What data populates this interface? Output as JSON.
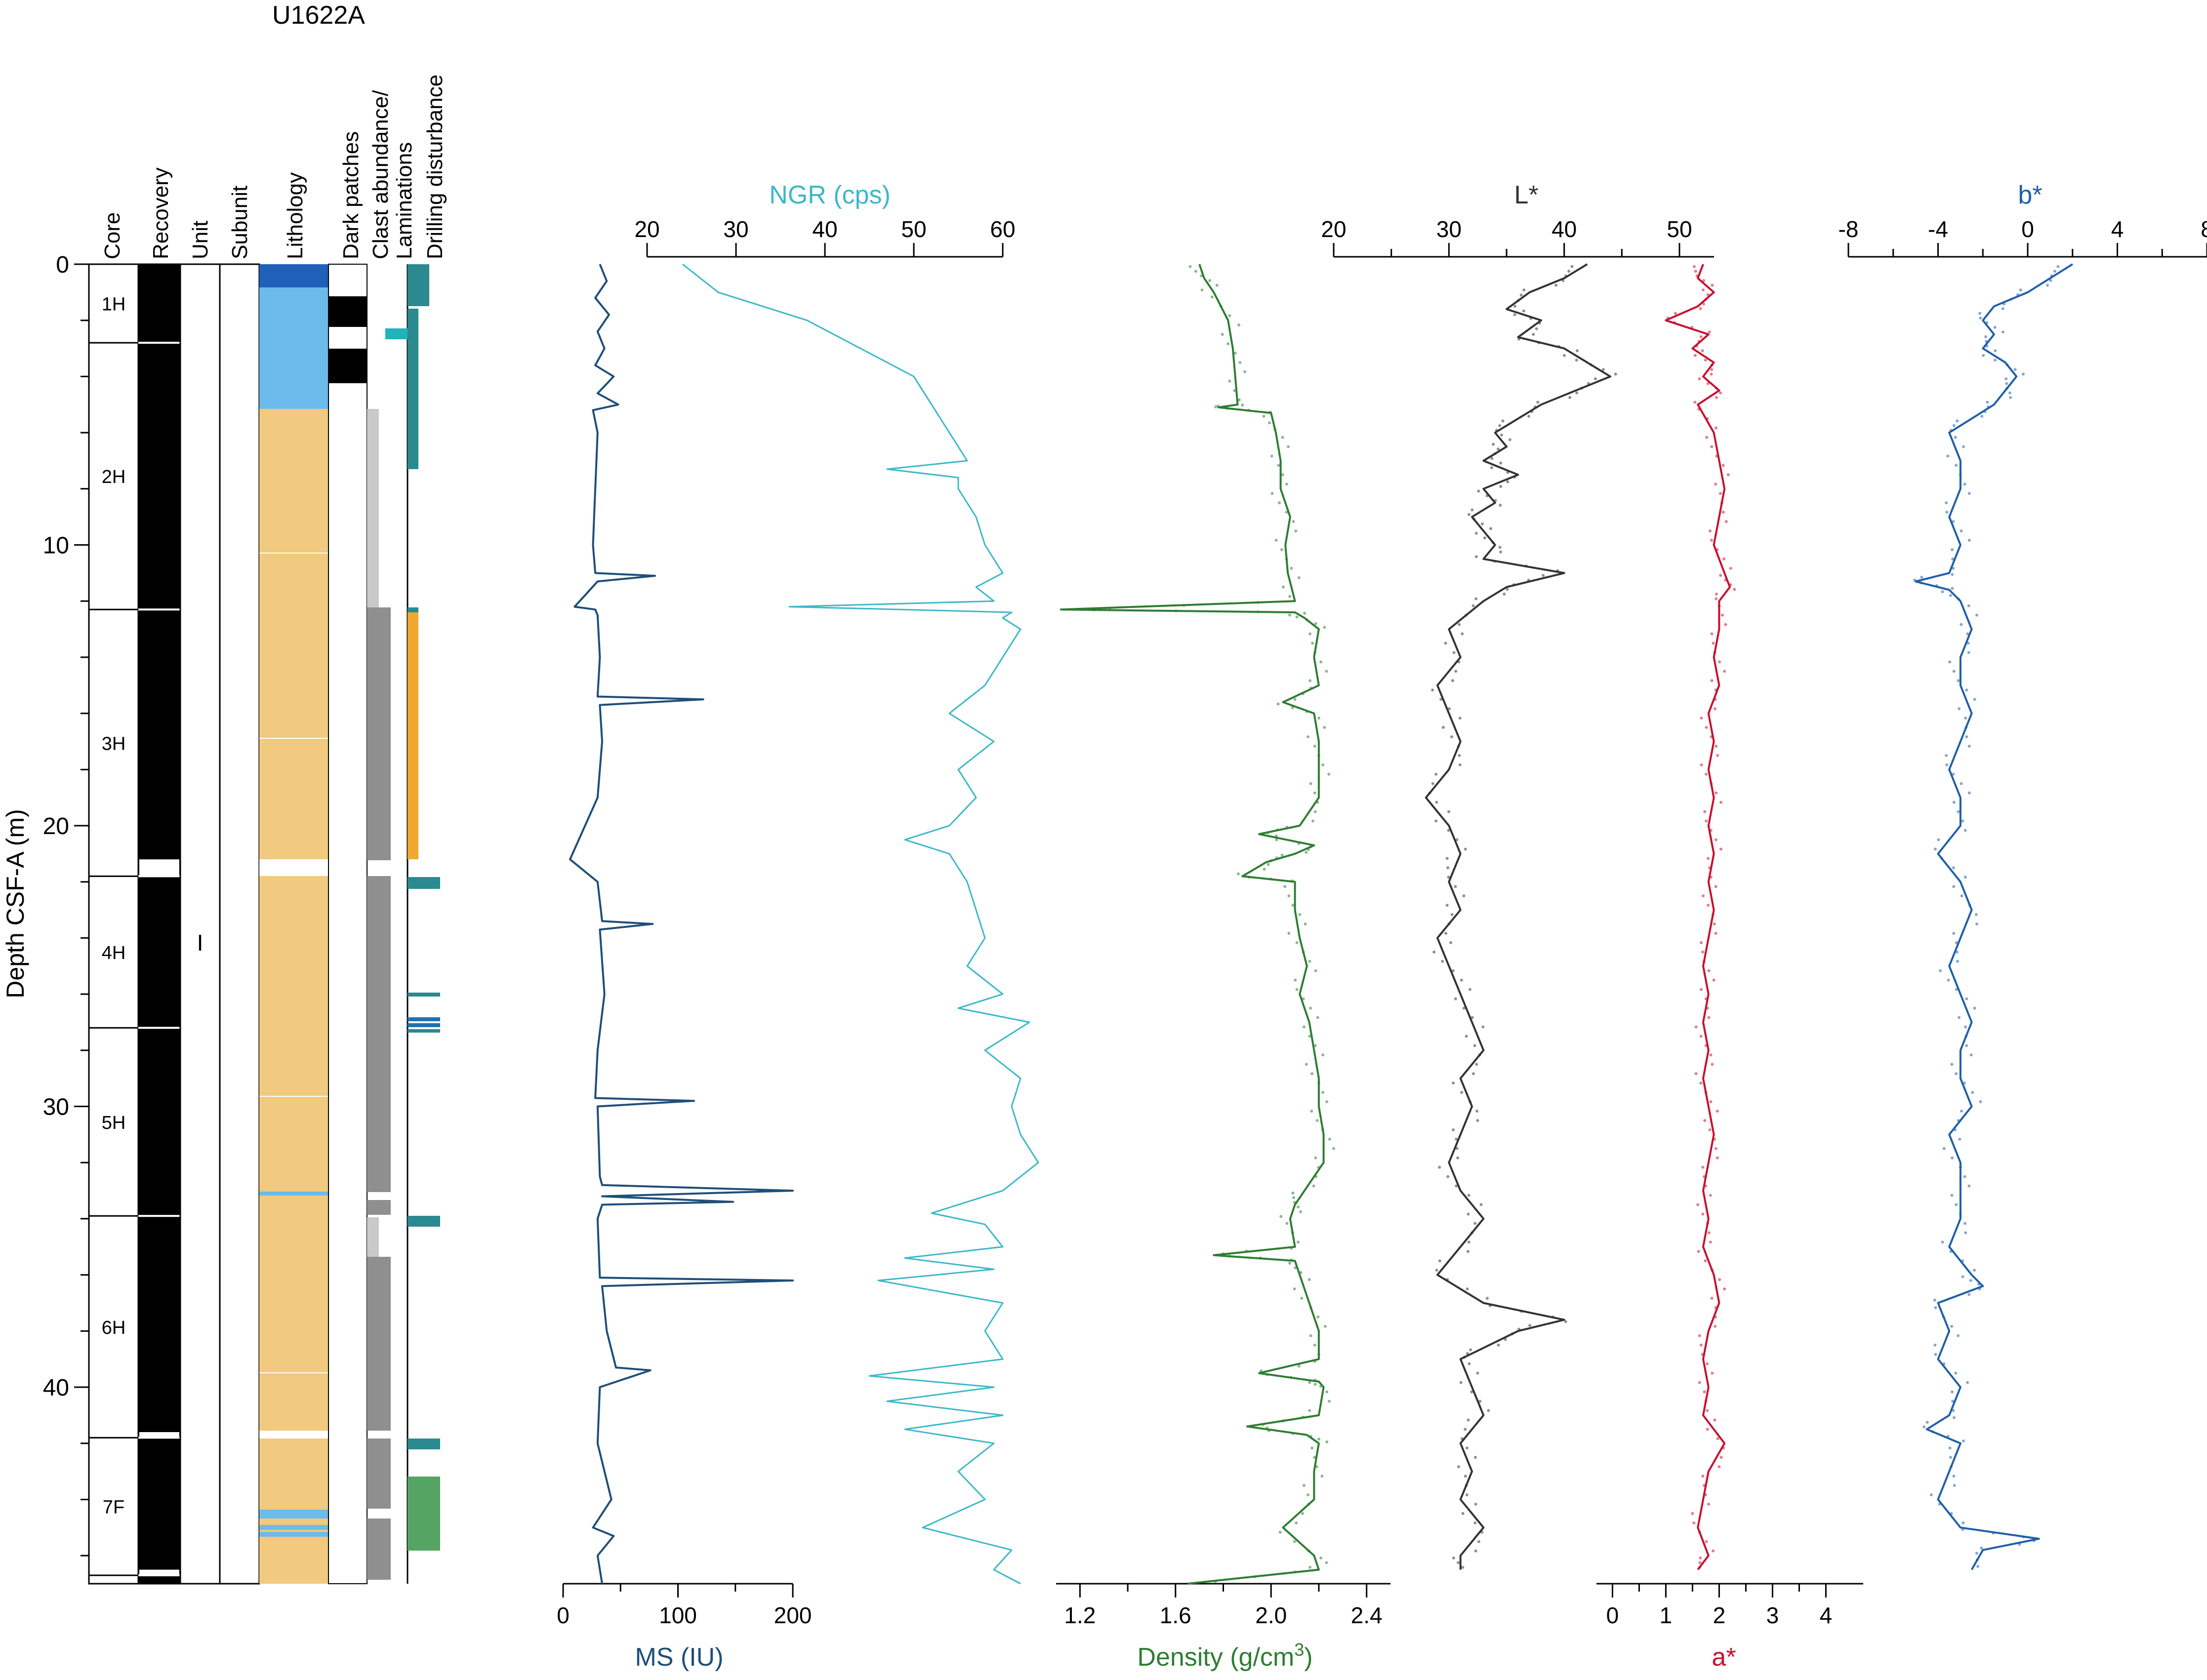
{
  "title": "U1622A",
  "depth_axis": {
    "label": "Depth CSF-A (m)",
    "ticks": [
      0,
      10,
      20,
      30,
      40
    ],
    "ylim": [
      0,
      47
    ]
  },
  "column_headers": {
    "core": "Core",
    "recovery": "Recovery",
    "unit": "Unit",
    "subunit": "Subunit",
    "lithology": "Lithology",
    "dark_patches": "Dark patches",
    "clast_laminations": [
      "Clast abundance/",
      "Laminations"
    ],
    "drilling_disturbance": "Drilling disturbance"
  },
  "unit_label": "I",
  "colors": {
    "ms": "#1f4e79",
    "ngr": "#3bb8c8",
    "density": "#2e7d32",
    "lstar": "#333333",
    "astar": "#c8102e",
    "bstar": "#1f5fa8",
    "mud": "#f1c97f",
    "blue_mud": "#6cbbea",
    "dark_blue": "#2060b8"
  },
  "chart_data": [
    {
      "type": "line",
      "name": "ms",
      "xlabel": "MS (IU)",
      "xlim": [
        0,
        200
      ],
      "xticks": [
        "0",
        "100",
        "200"
      ],
      "axis_position": "bottom",
      "depth": [
        0,
        0.6,
        1.2,
        1.8,
        2.4,
        3.0,
        3.6,
        4.0,
        4.6,
        5.0,
        5.2,
        6,
        8,
        10,
        11,
        11.1,
        11.3,
        12.2,
        12.3,
        12.5,
        14,
        15.4,
        15.5,
        15.7,
        17,
        19,
        21.2,
        22,
        23.4,
        23.5,
        23.7,
        26,
        28,
        29.7,
        29.8,
        30,
        32.5,
        32.8,
        33.0,
        33.2,
        33.4,
        33.5,
        34,
        36.1,
        36.2,
        36.4,
        38,
        39.3,
        39.4,
        40,
        42,
        44,
        45.0,
        45.3,
        46,
        47
      ],
      "values": [
        32,
        38,
        28,
        40,
        30,
        36,
        28,
        44,
        30,
        48,
        26,
        30,
        28,
        26,
        28,
        80,
        30,
        10,
        28,
        30,
        32,
        30,
        122,
        32,
        34,
        30,
        6,
        30,
        34,
        78,
        32,
        36,
        30,
        28,
        114,
        30,
        32,
        34,
        200,
        34,
        148,
        34,
        30,
        32,
        200,
        34,
        38,
        46,
        76,
        32,
        30,
        42,
        26,
        44,
        30,
        34
      ]
    },
    {
      "type": "line",
      "name": "ngr",
      "xlabel": "NGR (cps)",
      "xlim": [
        20,
        60
      ],
      "xticks": [
        "20",
        "30",
        "40",
        "50",
        "60"
      ],
      "axis_position": "top",
      "depth": [
        0,
        1,
        2,
        3,
        4,
        5,
        6,
        7,
        7.3,
        7.6,
        8,
        9,
        10,
        11,
        11.5,
        12,
        12.2,
        12.4,
        12.6,
        13,
        14,
        15,
        16,
        17,
        18,
        19,
        20,
        20.5,
        21,
        22,
        23,
        24,
        25,
        26,
        26.5,
        27,
        28,
        29,
        30,
        31,
        32,
        33,
        33.8,
        34.2,
        35,
        35.4,
        35.8,
        36.2,
        37,
        38,
        39,
        39.6,
        40,
        40.5,
        41,
        41.5,
        42,
        43,
        44,
        45,
        45.8,
        46.5,
        47
      ],
      "values": [
        24,
        28,
        38,
        44,
        50,
        52,
        54,
        56,
        47,
        55,
        55,
        57,
        58,
        60,
        57,
        59,
        36,
        61,
        60,
        62,
        60,
        58,
        54,
        59,
        55,
        57,
        54,
        49,
        54,
        56,
        57,
        58,
        56,
        60,
        55,
        63,
        58,
        62,
        61,
        62,
        64,
        60,
        52,
        58,
        60,
        49,
        59,
        46,
        60,
        58,
        60,
        45,
        59,
        47,
        60,
        49,
        59,
        55,
        58,
        51,
        61,
        59,
        62
      ]
    },
    {
      "type": "line",
      "name": "density",
      "xlabel": "Density (g/cm3)",
      "xlabel_main": "Density (g/cm",
      "xlabel_sup": "3",
      "xlabel_close": ")",
      "xlim": [
        1.1,
        2.5
      ],
      "xticks": [
        "1.2",
        "1.6",
        "2.0",
        "2.4"
      ],
      "axis_position": "bottom",
      "depth": [
        0,
        0.5,
        1,
        2,
        3,
        4,
        5,
        5.1,
        5.3,
        6,
        7,
        8,
        9,
        10,
        11,
        12,
        12.3,
        12.4,
        12.6,
        13,
        14,
        15,
        15.6,
        16,
        17,
        18,
        19,
        20,
        20.3,
        20.7,
        21,
        21.3,
        21.8,
        22,
        23,
        24,
        25,
        26,
        27,
        28,
        29,
        30,
        31,
        32,
        33,
        33.5,
        34,
        35,
        35.3,
        35.5,
        36,
        37,
        38,
        39,
        39.5,
        39.8,
        40,
        41,
        41.4,
        41.7,
        42,
        43,
        44,
        45,
        46,
        46.5,
        47
      ],
      "values": [
        1.7,
        1.72,
        1.76,
        1.82,
        1.84,
        1.85,
        1.86,
        1.78,
        2.0,
        2.02,
        2.04,
        2.04,
        2.08,
        2.06,
        2.07,
        2.1,
        1.12,
        2.1,
        2.14,
        2.2,
        2.18,
        2.2,
        2.05,
        2.18,
        2.2,
        2.2,
        2.2,
        2.12,
        1.95,
        2.18,
        2.1,
        1.98,
        1.88,
        2.1,
        2.1,
        2.12,
        2.15,
        2.12,
        2.16,
        2.18,
        2.2,
        2.2,
        2.22,
        2.22,
        2.14,
        2.1,
        2.08,
        2.1,
        1.76,
        2.1,
        2.12,
        2.16,
        2.2,
        2.2,
        1.95,
        2.2,
        2.22,
        2.2,
        1.9,
        2.15,
        2.2,
        2.18,
        2.18,
        2.05,
        2.18,
        2.2,
        1.65
      ]
    },
    {
      "type": "line",
      "name": "lstar",
      "xlabel": "L*",
      "xlim": [
        20,
        53
      ],
      "xticks": [
        "20",
        "30",
        "40",
        "50"
      ],
      "axis_position": "top",
      "depth": [
        0,
        0.5,
        1,
        1.6,
        2,
        2.6,
        3,
        3.5,
        4,
        4.5,
        5,
        5.5,
        6,
        6.5,
        7,
        7.5,
        8,
        8.5,
        9,
        9.5,
        10,
        10.5,
        11,
        11.5,
        12,
        13,
        14,
        15,
        16,
        17,
        18,
        19,
        20,
        21,
        22,
        23,
        24,
        25,
        26,
        27,
        28,
        29,
        30,
        31,
        32,
        33,
        34,
        35,
        36,
        37,
        37.6,
        38,
        38.6,
        39,
        40,
        41,
        42,
        43,
        44,
        45,
        46,
        46.5
      ],
      "values": [
        42,
        40,
        37,
        35,
        38,
        36,
        40,
        42,
        44,
        41,
        38,
        36,
        34,
        35,
        33,
        36,
        33,
        34,
        32,
        33,
        34,
        33,
        40,
        35,
        33,
        30,
        31,
        29,
        30,
        31,
        30,
        28,
        30,
        31,
        30,
        31,
        29,
        30,
        31,
        32,
        33,
        31,
        32,
        31,
        30,
        31,
        33,
        31,
        29,
        33,
        40,
        36,
        33,
        31,
        32,
        33,
        31,
        32,
        31,
        33,
        31,
        31
      ]
    },
    {
      "type": "line",
      "name": "astar",
      "xlabel": "a*",
      "xlim": [
        -0.3,
        4.7
      ],
      "xticks": [
        "0",
        "1",
        "2",
        "3",
        "4"
      ],
      "axis_position": "bottom",
      "depth": [
        0,
        0.5,
        1,
        1.5,
        2,
        2.5,
        3,
        3.5,
        4,
        4.5,
        5,
        6,
        7,
        8,
        9,
        10,
        11,
        11.5,
        12,
        13,
        14,
        15,
        16,
        17,
        18,
        19,
        20,
        21,
        22,
        23,
        24,
        25,
        26,
        27,
        28,
        29,
        30,
        31,
        32,
        33,
        34,
        35,
        36,
        37,
        38,
        39,
        40,
        41,
        42,
        43,
        44,
        45,
        46,
        46.5
      ],
      "values": [
        1.7,
        1.6,
        1.9,
        1.6,
        1.0,
        1.8,
        1.5,
        1.9,
        1.7,
        2.0,
        1.6,
        1.9,
        2.0,
        2.1,
        2.0,
        1.9,
        2.1,
        2.2,
        2.0,
        2.0,
        1.9,
        2.0,
        1.8,
        1.9,
        1.8,
        1.9,
        1.8,
        1.9,
        1.8,
        1.9,
        1.8,
        1.7,
        1.8,
        1.7,
        1.8,
        1.7,
        1.8,
        1.9,
        1.8,
        1.7,
        1.8,
        1.7,
        1.9,
        2.0,
        1.8,
        1.7,
        1.8,
        1.7,
        2.1,
        1.8,
        1.7,
        1.6,
        1.8,
        1.6
      ]
    },
    {
      "type": "line",
      "name": "bstar",
      "xlabel": "b*",
      "xlim": [
        -8,
        8
      ],
      "xticks": [
        "-8",
        "-4",
        "0",
        "4",
        "8"
      ],
      "axis_position": "top",
      "depth": [
        0,
        0.5,
        1,
        1.5,
        2,
        2.5,
        3,
        3.5,
        4,
        4.5,
        5,
        5.5,
        6,
        7,
        8,
        9,
        10,
        11,
        11.3,
        11.6,
        12,
        13,
        14,
        15,
        16,
        17,
        18,
        19,
        20,
        21,
        22,
        23,
        24,
        25,
        26,
        27,
        28,
        29,
        30,
        31,
        32,
        33,
        34,
        35,
        36,
        36.4,
        37,
        38,
        39,
        40,
        41,
        41.5,
        42,
        43,
        44,
        45,
        45.4,
        45.8,
        46.5
      ],
      "values": [
        2,
        1,
        0,
        -1.5,
        -2,
        -1.5,
        -2,
        -1,
        -0.5,
        -1,
        -1.5,
        -2.5,
        -3.5,
        -3,
        -3,
        -3.5,
        -3,
        -3.5,
        -5,
        -3.5,
        -3,
        -2.5,
        -3,
        -3,
        -2.5,
        -3,
        -3.5,
        -3,
        -3,
        -4,
        -3,
        -2.5,
        -3,
        -3.5,
        -3,
        -2.5,
        -3,
        -3,
        -2.5,
        -3.5,
        -3,
        -3,
        -3,
        -3.5,
        -2.5,
        -2,
        -4,
        -3.5,
        -4,
        -3,
        -3.5,
        -4.5,
        -3,
        -3.5,
        -4,
        -3,
        0.5,
        -2,
        -2.5
      ]
    },
    {
      "type": "table",
      "name": "cores",
      "cores": [
        {
          "label": "1H",
          "top": 0,
          "bottom": 2.8
        },
        {
          "label": "2H",
          "top": 2.8,
          "bottom": 12.3
        },
        {
          "label": "3H",
          "top": 12.3,
          "bottom": 21.8
        },
        {
          "label": "4H",
          "top": 21.8,
          "bottom": 27.2
        },
        {
          "label": "5H",
          "top": 27.2,
          "bottom": 33.9
        },
        {
          "label": "6H",
          "top": 33.9,
          "bottom": 41.8
        },
        {
          "label": "7F",
          "top": 41.8,
          "bottom": 46.7
        }
      ],
      "recovery_gaps": [
        [
          21.2,
          21.8
        ],
        [
          41.6,
          41.8
        ],
        [
          46.5,
          46.7
        ]
      ]
    }
  ]
}
